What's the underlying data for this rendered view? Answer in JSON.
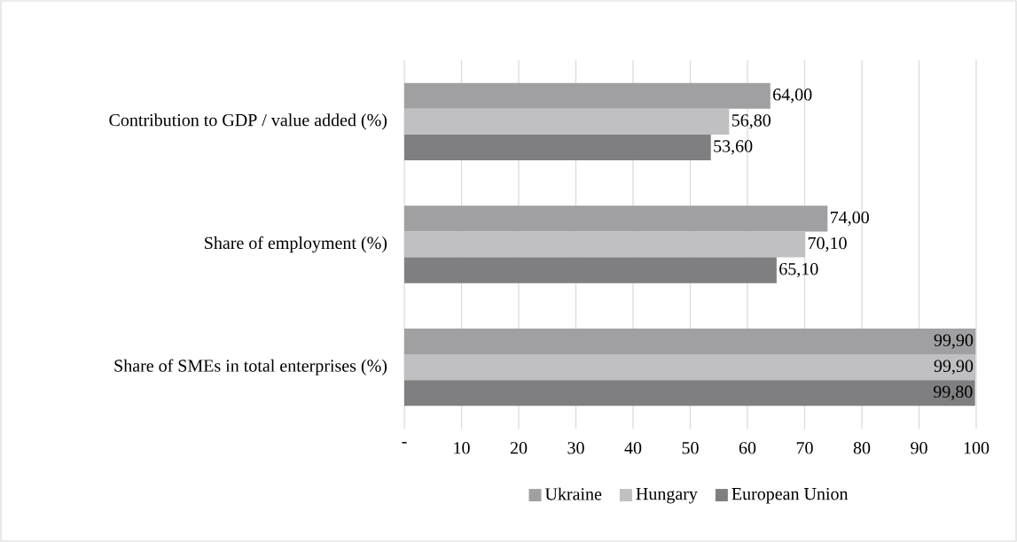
{
  "chart_data": {
    "type": "bar",
    "orientation": "horizontal",
    "categories": [
      "Contribution to GDP / value added (%)",
      "Share of employment (%)",
      "Share of SMEs in total enterprises (%)"
    ],
    "series": [
      {
        "name": "Ukraine",
        "color": "#a0a0a2",
        "values": [
          64.0,
          74.0,
          99.9
        ],
        "value_labels": [
          "64,00",
          "74,00",
          "99,90"
        ]
      },
      {
        "name": "Hungary",
        "color": "#c0c0c2",
        "values": [
          56.8,
          70.1,
          99.9
        ],
        "value_labels": [
          "56,80",
          "70,10",
          "99,90"
        ]
      },
      {
        "name": "European Union",
        "color": "#7f7f81",
        "values": [
          53.6,
          65.1,
          99.8
        ],
        "value_labels": [
          "53,60",
          "65,10",
          "99,80"
        ]
      }
    ],
    "xlim": [
      0,
      100
    ],
    "xticks": [
      {
        "value": 0,
        "label": "-"
      },
      10,
      20,
      30,
      40,
      50,
      60,
      70,
      80,
      90,
      100
    ],
    "grid": "x",
    "legend": "bottom"
  }
}
